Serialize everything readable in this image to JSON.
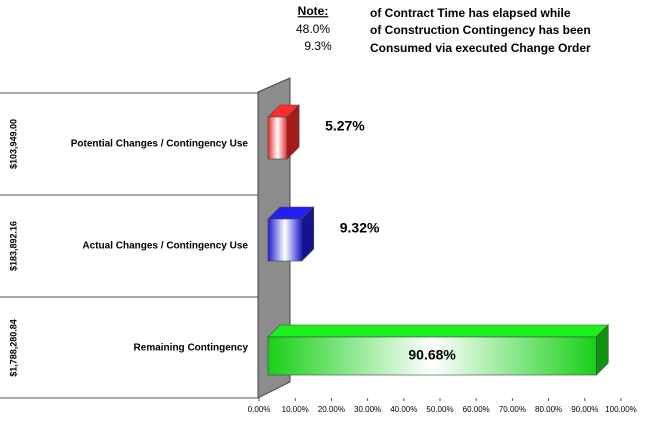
{
  "chart_data": {
    "type": "bar3d_horizontal",
    "note": {
      "title": "Note:",
      "figures": [
        "48.0%",
        "9.3%"
      ],
      "lines": [
        "of Contract Time has elapsed while",
        "of Construction Contingency has been",
        "Consumed via executed Change Order"
      ]
    },
    "categories": [
      "Potential Changes / Contingency Use",
      "Actual Changes / Contingency Use",
      "Remaining Contingency"
    ],
    "row_labels": [
      "$103,949.00",
      "$183,892.16",
      "$1,788,280.84"
    ],
    "values": [
      5.27,
      9.32,
      90.68
    ],
    "value_labels": [
      "5.27%",
      "9.32%",
      "90.68%"
    ],
    "colors": [
      "#e82828",
      "#1c1cd0",
      "#18d018"
    ],
    "xlim": [
      0,
      100
    ],
    "xticks": [
      {
        "value": 0,
        "label": "0.00%"
      },
      {
        "value": 10,
        "label": "10.00%"
      },
      {
        "value": 20,
        "label": "20.00%"
      },
      {
        "value": 30,
        "label": "30.00%"
      },
      {
        "value": 40,
        "label": "40.00%"
      },
      {
        "value": 50,
        "label": "50.00%"
      },
      {
        "value": 60,
        "label": "60.00%"
      },
      {
        "value": 70,
        "label": "70.00%"
      },
      {
        "value": 80,
        "label": "80.00%"
      },
      {
        "value": 90,
        "label": "90.00%"
      },
      {
        "value": 100,
        "label": "100.00%"
      }
    ]
  }
}
